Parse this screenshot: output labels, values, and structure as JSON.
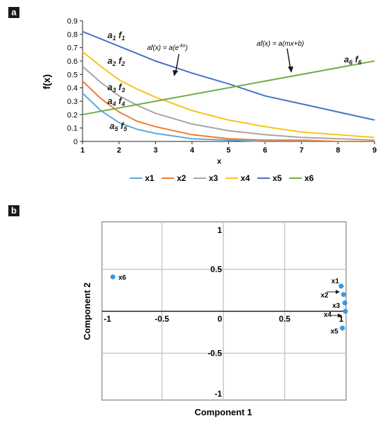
{
  "panels": {
    "a": "a",
    "b": "b"
  },
  "chart_data": [
    {
      "type": "line",
      "xlabel": "x",
      "ylabel": "f(x)",
      "xlim": [
        1,
        9
      ],
      "ylim": [
        0,
        0.9
      ],
      "xticks": [
        "1",
        "2",
        "3",
        "4",
        "5",
        "6",
        "7",
        "8",
        "9"
      ],
      "yticks": [
        "0",
        "0.1",
        "0.2",
        "0.3",
        "0.4",
        "0.5",
        "0.6",
        "0.7",
        "0.8",
        "0.9"
      ],
      "grid": false,
      "legend_position": "bottom",
      "colors": {
        "x1": "#5aa9db",
        "x2": "#ed7d31",
        "x3": "#a5a5a5",
        "x4": "#f5c518",
        "x5": "#4472c4",
        "x6": "#70ad47"
      },
      "series": [
        {
          "name": "x1",
          "x": [
            1,
            1.5,
            2,
            2.5,
            3,
            4,
            5,
            6,
            7,
            8,
            9
          ],
          "y": [
            0.36,
            0.23,
            0.14,
            0.09,
            0.06,
            0.02,
            0.01,
            0.0,
            0.0,
            0.0,
            0.0
          ]
        },
        {
          "name": "x2",
          "x": [
            1,
            1.5,
            2,
            2.5,
            3,
            4,
            5,
            6,
            7,
            8,
            9
          ],
          "y": [
            0.45,
            0.32,
            0.22,
            0.15,
            0.11,
            0.05,
            0.02,
            0.01,
            0.01,
            0.0,
            0.0
          ]
        },
        {
          "name": "x3",
          "x": [
            1,
            1.5,
            2,
            2.5,
            3,
            4,
            5,
            6,
            7,
            8,
            9
          ],
          "y": [
            0.56,
            0.44,
            0.34,
            0.27,
            0.21,
            0.13,
            0.08,
            0.05,
            0.03,
            0.02,
            0.01
          ]
        },
        {
          "name": "x4",
          "x": [
            1,
            1.5,
            2,
            2.5,
            3,
            4,
            5,
            6,
            7,
            8,
            9
          ],
          "y": [
            0.67,
            0.56,
            0.46,
            0.39,
            0.33,
            0.23,
            0.16,
            0.11,
            0.07,
            0.05,
            0.03
          ]
        },
        {
          "name": "x5",
          "x": [
            1,
            2,
            3,
            4,
            5,
            6,
            7,
            8,
            9
          ],
          "y": [
            0.82,
            0.71,
            0.6,
            0.51,
            0.43,
            0.34,
            0.28,
            0.22,
            0.16
          ]
        },
        {
          "name": "x6",
          "x": [
            1,
            9
          ],
          "y": [
            0.2,
            0.6
          ]
        }
      ],
      "annotations": {
        "exp_formula": "af(x) = a(e",
        "exp_formula_sup": "-kx",
        "exp_formula_end": ")",
        "lin_formula": "af(x) = a(mx+b)",
        "curve_labels": [
          {
            "a": "a",
            "a_sub": "1",
            "f": "f",
            "f_sub": "1"
          },
          {
            "a": "a",
            "a_sub": "2",
            "f": "f",
            "f_sub": "2"
          },
          {
            "a": "a",
            "a_sub": "3",
            "f": "f",
            "f_sub": "3"
          },
          {
            "a": "a",
            "a_sub": "4",
            "f": "f",
            "f_sub": "4"
          },
          {
            "a": "a",
            "a_sub": "5",
            "f": "f",
            "f_sub": "5"
          },
          {
            "a": "a",
            "a_sub": "6",
            "f": "f",
            "f_sub": "6"
          }
        ]
      }
    },
    {
      "type": "scatter",
      "xlabel": "Component 1",
      "ylabel": "Component 2",
      "xlim": [
        -1,
        1
      ],
      "ylim": [
        -1,
        1
      ],
      "xticks": [
        "-1",
        "-0.5",
        "0",
        "0.5",
        "1"
      ],
      "yticks": [
        "1",
        "0.5",
        "-0.5",
        "-1"
      ],
      "grid": true,
      "point_color": "#3a9ad9",
      "points": [
        {
          "label": "x6",
          "x": -0.9,
          "y": 0.41
        },
        {
          "label": "x1",
          "x": 0.96,
          "y": 0.3
        },
        {
          "label": "x2",
          "x": 0.98,
          "y": 0.2
        },
        {
          "label": "x3",
          "x": 0.99,
          "y": 0.1
        },
        {
          "label": "x4",
          "x": 1.0,
          "y": 0.0
        },
        {
          "label": "x5",
          "x": 0.97,
          "y": -0.2
        }
      ]
    }
  ]
}
